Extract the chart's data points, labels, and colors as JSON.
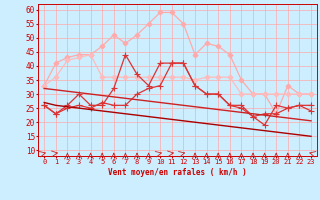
{
  "xlabel": "Vent moyen/en rafales ( km/h )",
  "xlim": [
    -0.5,
    23.5
  ],
  "ylim": [
    8,
    62
  ],
  "yticks": [
    10,
    15,
    20,
    25,
    30,
    35,
    40,
    45,
    50,
    55,
    60
  ],
  "xticks": [
    0,
    1,
    2,
    3,
    4,
    5,
    6,
    7,
    8,
    9,
    10,
    11,
    12,
    13,
    14,
    15,
    16,
    17,
    18,
    19,
    20,
    21,
    22,
    23
  ],
  "background_color": "#cceeff",
  "grid_color": "#ffaaaa",
  "lines": [
    {
      "y": [
        33,
        41,
        43,
        44,
        44,
        47,
        51,
        48,
        51,
        55,
        59,
        59,
        55,
        44,
        48,
        47,
        44,
        35,
        30,
        30,
        23,
        33,
        30,
        30
      ],
      "color": "#ffaaaa",
      "linewidth": 0.9,
      "marker": "D",
      "markersize": 2.5,
      "alpha": 1.0
    },
    {
      "y": [
        33,
        36,
        42,
        43,
        44,
        36,
        36,
        36,
        36,
        36,
        36,
        36,
        36,
        35,
        36,
        36,
        36,
        30,
        30,
        30,
        30,
        30,
        30,
        30
      ],
      "color": "#ffbbbb",
      "linewidth": 0.9,
      "marker": "D",
      "markersize": 2.5,
      "alpha": 1.0
    },
    {
      "y": [
        26,
        23,
        26,
        30,
        26,
        26,
        32,
        44,
        37,
        33,
        41,
        41,
        41,
        33,
        30,
        30,
        26,
        26,
        22,
        19,
        26,
        25,
        26,
        26
      ],
      "color": "#dd3333",
      "linewidth": 0.9,
      "marker": "+",
      "markersize": 4,
      "alpha": 1.0
    },
    {
      "y": [
        26,
        23,
        25,
        26,
        25,
        27,
        26,
        26,
        30,
        32,
        33,
        41,
        41,
        33,
        30,
        30,
        26,
        25,
        22,
        23,
        23,
        25,
        26,
        24
      ],
      "color": "#dd3333",
      "linewidth": 0.9,
      "marker": "+",
      "markersize": 4,
      "alpha": 1.0
    },
    {
      "y": [
        32,
        31.5,
        31,
        30.5,
        30,
        29.5,
        29,
        28.5,
        28,
        27.5,
        27,
        26.5,
        26,
        25.5,
        25,
        24.5,
        24,
        23.5,
        23,
        22.5,
        22,
        21.5,
        21,
        20.5
      ],
      "color": "#cc2222",
      "linewidth": 1.0,
      "marker": null,
      "markersize": 0,
      "alpha": 1.0
    },
    {
      "y": [
        27,
        26,
        25.5,
        25,
        24.5,
        24,
        23.5,
        23,
        22.5,
        22,
        21.5,
        21,
        20.5,
        20,
        19.5,
        19,
        18.5,
        18,
        17.5,
        17,
        16.5,
        16,
        15.5,
        15
      ],
      "color": "#aa0000",
      "linewidth": 1.0,
      "marker": null,
      "markersize": 0,
      "alpha": 1.0
    }
  ],
  "arrow_angles": [
    45,
    60,
    0,
    0,
    0,
    0,
    0,
    0,
    0,
    0,
    45,
    60,
    45,
    0,
    0,
    0,
    0,
    0,
    0,
    0,
    0,
    0,
    0,
    315
  ]
}
